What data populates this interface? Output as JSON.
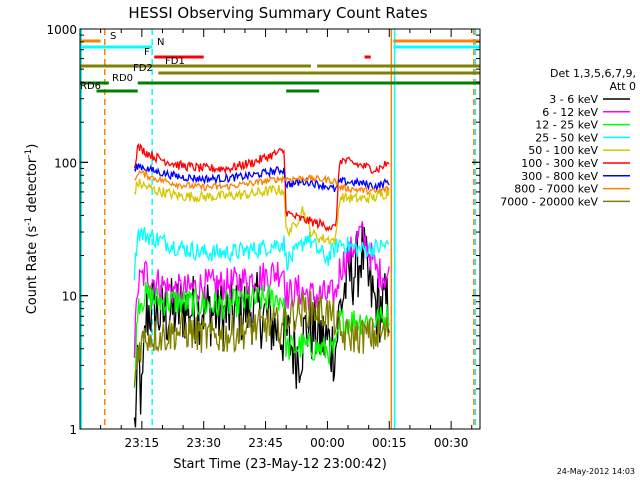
{
  "chart_data": {
    "type": "line",
    "title": "HESSI Observing Summary Count Rates",
    "xlabel": "Start Time (23-May-12 23:00:42)",
    "ylabel_parts": [
      "Count Rate (s",
      "-1",
      " detector",
      "-1",
      ")"
    ],
    "yscale": "log",
    "ylim": [
      1,
      1000
    ],
    "xlim_minutes": [
      0,
      97
    ],
    "x_ticks": [
      {
        "m": 15,
        "label": "23:15"
      },
      {
        "m": 30,
        "label": "23:30"
      },
      {
        "m": 45,
        "label": "23:45"
      },
      {
        "m": 60,
        "label": "00:00"
      },
      {
        "m": 75,
        "label": "00:15"
      },
      {
        "m": 90,
        "label": "00:30"
      }
    ],
    "y_ticks": [
      {
        "v": 1,
        "label": "1"
      },
      {
        "v": 10,
        "label": "10"
      },
      {
        "v": 100,
        "label": "100"
      },
      {
        "v": 1000,
        "label": "1000"
      }
    ],
    "legend": {
      "header": [
        "Det 1,3,5,6,7,9,",
        "Att 0"
      ],
      "placement": "right"
    },
    "series": [
      {
        "name": "3 - 6 keV",
        "color": "#000000",
        "noise": 0.55,
        "points": [
          [
            13.2,
            1
          ],
          [
            14.2,
            3
          ],
          [
            15,
            1.5
          ],
          [
            16,
            7
          ],
          [
            17,
            8
          ],
          [
            20,
            7
          ],
          [
            25,
            8
          ],
          [
            30,
            8
          ],
          [
            35,
            7
          ],
          [
            40,
            8
          ],
          [
            43,
            8
          ],
          [
            47,
            6
          ],
          [
            50,
            5
          ],
          [
            53,
            3.5
          ],
          [
            55,
            6
          ],
          [
            58,
            5
          ],
          [
            62,
            4
          ],
          [
            63,
            8
          ],
          [
            65,
            14
          ],
          [
            67,
            16
          ],
          [
            68.5,
            22
          ],
          [
            70,
            12
          ],
          [
            72,
            8
          ],
          [
            75,
            8.5
          ]
        ]
      },
      {
        "name": "6 - 12 keV",
        "color": "#ff00ff",
        "noise": 0.25,
        "points": [
          [
            13.2,
            4
          ],
          [
            14,
            12
          ],
          [
            16,
            15
          ],
          [
            18,
            13
          ],
          [
            22,
            11
          ],
          [
            26,
            11
          ],
          [
            30,
            12
          ],
          [
            35,
            12
          ],
          [
            40,
            13
          ],
          [
            45,
            14
          ],
          [
            49.5,
            16
          ],
          [
            50,
            10
          ],
          [
            53,
            11
          ],
          [
            56,
            10
          ],
          [
            59,
            10
          ],
          [
            62,
            10
          ],
          [
            63,
            16
          ],
          [
            66,
            22
          ],
          [
            68,
            30
          ],
          [
            70,
            22
          ],
          [
            72,
            15
          ],
          [
            75,
            14
          ]
        ]
      },
      {
        "name": "12 - 25 keV",
        "color": "#00ff00",
        "noise": 0.22,
        "points": [
          [
            13.2,
            2
          ],
          [
            14,
            9
          ],
          [
            16,
            10
          ],
          [
            20,
            9
          ],
          [
            25,
            9
          ],
          [
            30,
            8.5
          ],
          [
            35,
            8.5
          ],
          [
            40,
            9
          ],
          [
            45,
            9.5
          ],
          [
            49.5,
            9.5
          ],
          [
            50,
            4
          ],
          [
            54,
            4.2
          ],
          [
            58,
            4
          ],
          [
            62,
            3.8
          ],
          [
            63,
            6.5
          ],
          [
            68,
            6.5
          ],
          [
            72,
            6.5
          ],
          [
            75,
            7
          ]
        ]
      },
      {
        "name": "25 - 50 keV",
        "color": "#00ffff",
        "noise": 0.14,
        "points": [
          [
            13.2,
            15
          ],
          [
            14,
            30
          ],
          [
            18,
            27
          ],
          [
            24,
            23
          ],
          [
            30,
            21
          ],
          [
            36,
            21
          ],
          [
            42,
            22
          ],
          [
            47,
            24
          ],
          [
            49.5,
            25
          ],
          [
            50,
            18
          ],
          [
            53,
            22
          ],
          [
            55,
            28
          ],
          [
            57,
            23
          ],
          [
            60,
            19
          ],
          [
            63,
            25
          ],
          [
            68,
            22
          ],
          [
            72,
            23
          ],
          [
            75,
            24
          ]
        ]
      },
      {
        "name": "50 - 100 keV",
        "color": "#d4c800",
        "noise": 0.08,
        "points": [
          [
            13.2,
            60
          ],
          [
            14,
            70
          ],
          [
            18,
            62
          ],
          [
            24,
            56
          ],
          [
            30,
            55
          ],
          [
            36,
            56
          ],
          [
            42,
            58
          ],
          [
            47,
            62
          ],
          [
            49.5,
            62
          ],
          [
            50,
            30
          ],
          [
            52,
            33
          ],
          [
            54,
            45
          ],
          [
            56,
            30
          ],
          [
            58,
            27
          ],
          [
            62,
            26
          ],
          [
            63,
            55
          ],
          [
            68,
            53
          ],
          [
            72,
            55
          ],
          [
            75,
            60
          ]
        ]
      },
      {
        "name": "100 - 300 keV",
        "color": "#ff0000",
        "noise": 0.07,
        "points": [
          [
            13.2,
            95
          ],
          [
            14,
            130
          ],
          [
            18,
            110
          ],
          [
            24,
            95
          ],
          [
            30,
            90
          ],
          [
            36,
            90
          ],
          [
            42,
            100
          ],
          [
            47,
            115
          ],
          [
            49.5,
            122
          ],
          [
            50,
            42
          ],
          [
            53,
            38
          ],
          [
            56,
            36
          ],
          [
            59,
            34
          ],
          [
            62,
            32
          ],
          [
            63,
            105
          ],
          [
            68,
            95
          ],
          [
            72,
            88
          ],
          [
            75,
            100
          ]
        ]
      },
      {
        "name": "300 - 800 keV",
        "color": "#0000ff",
        "noise": 0.06,
        "points": [
          [
            13.2,
            85
          ],
          [
            14,
            95
          ],
          [
            18,
            86
          ],
          [
            24,
            78
          ],
          [
            30,
            75
          ],
          [
            36,
            76
          ],
          [
            42,
            80
          ],
          [
            47,
            86
          ],
          [
            49.5,
            88
          ],
          [
            50,
            68
          ],
          [
            55,
            72
          ],
          [
            60,
            66
          ],
          [
            62,
            62
          ],
          [
            63,
            72
          ],
          [
            68,
            70
          ],
          [
            72,
            66
          ],
          [
            75,
            72
          ]
        ]
      },
      {
        "name": "800 - 7000 keV",
        "color": "#ff8000",
        "noise": 0.05,
        "points": [
          [
            13.2,
            70
          ],
          [
            14,
            85
          ],
          [
            18,
            76
          ],
          [
            24,
            68
          ],
          [
            30,
            65
          ],
          [
            36,
            66
          ],
          [
            42,
            70
          ],
          [
            47,
            74
          ],
          [
            49.5,
            76
          ],
          [
            50,
            75
          ],
          [
            55,
            76
          ],
          [
            60,
            74
          ],
          [
            62,
            72
          ],
          [
            63,
            65
          ],
          [
            68,
            62
          ],
          [
            72,
            60
          ],
          [
            75,
            64
          ]
        ]
      },
      {
        "name": "7000 - 20000 keV",
        "color": "#808000",
        "noise": 0.28,
        "points": [
          [
            13.2,
            2
          ],
          [
            14,
            4
          ],
          [
            16,
            5
          ],
          [
            20,
            5
          ],
          [
            25,
            5.5
          ],
          [
            30,
            5
          ],
          [
            35,
            5
          ],
          [
            40,
            5.5
          ],
          [
            45,
            6
          ],
          [
            49.5,
            6
          ],
          [
            50,
            7
          ],
          [
            55,
            8
          ],
          [
            60,
            7.5
          ],
          [
            62,
            6.5
          ],
          [
            63,
            5
          ],
          [
            68,
            5
          ],
          [
            72,
            5
          ],
          [
            75,
            5.5
          ]
        ]
      }
    ],
    "flag_bars": [
      {
        "label": "S",
        "color": "#ff8000",
        "segments": [
          [
            0,
            5
          ],
          [
            76,
            97
          ]
        ]
      },
      {
        "label": "N",
        "color": "#00ffff",
        "segments": [
          [
            0,
            17.5
          ],
          [
            76,
            97
          ]
        ]
      },
      {
        "label": "F",
        "color": "#ff0000",
        "segments": [
          [
            18,
            30
          ],
          [
            69,
            70.5
          ]
        ]
      },
      {
        "label": "FD1",
        "color": "#808000",
        "segments": [
          [
            0,
            56
          ],
          [
            57.5,
            97
          ]
        ]
      },
      {
        "label": "FD2",
        "color": "#808000",
        "segments": [
          [
            19,
            97
          ]
        ]
      },
      {
        "label": "RD0",
        "color": "#008000",
        "segments": [
          [
            0,
            7
          ],
          [
            14,
            97
          ]
        ]
      },
      {
        "label": "RD6",
        "color": "#008000",
        "segments": [
          [
            4,
            14
          ],
          [
            50,
            58
          ]
        ]
      }
    ],
    "vertical_markers": [
      {
        "m": 6,
        "color": "#ff8000",
        "style": "dashed"
      },
      {
        "m": 17.5,
        "color": "#00ffff",
        "style": "dashed"
      },
      {
        "m": 75.5,
        "color": "#ff8000",
        "style": "solid"
      },
      {
        "m": 76.3,
        "color": "#00ffff",
        "style": "solid"
      },
      {
        "m": 95.5,
        "color": "#ff8000",
        "style": "dashed"
      },
      {
        "m": 95.9,
        "color": "#00ffff",
        "style": "dashed"
      },
      {
        "m": 0.3,
        "color": "#00ffff",
        "style": "solid"
      }
    ],
    "footer_date": "24-May-2012 14:03"
  }
}
